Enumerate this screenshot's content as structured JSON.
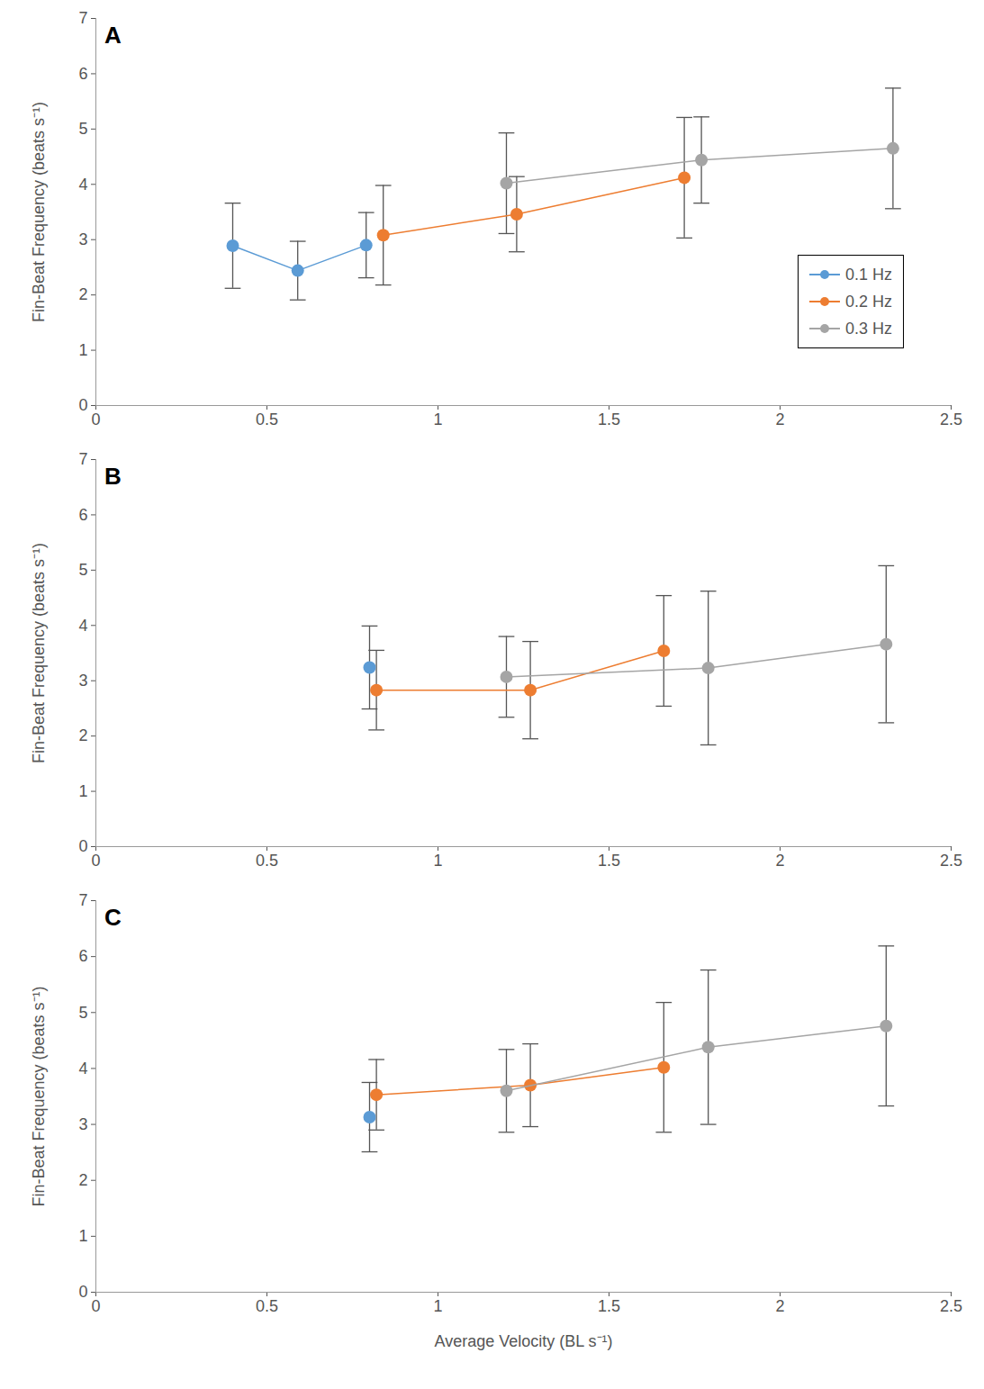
{
  "chart_data": [
    {
      "type": "line",
      "title": "A",
      "y_label": "Fin-Beat Frequency (beats s⁻¹)",
      "xlim": [
        0,
        2.5
      ],
      "xticks": [
        0,
        0.5,
        1,
        1.5,
        2,
        2.5
      ],
      "ylim": [
        0,
        7
      ],
      "yticks": [
        0,
        1,
        2,
        3,
        4,
        5,
        6,
        7
      ],
      "grid": false,
      "legend": "right",
      "marker": "circle",
      "series": [
        {
          "name": "0.1 Hz",
          "color": "#5B9BD5",
          "x": [
            0.4,
            0.59,
            0.79
          ],
          "values": [
            2.89,
            2.44,
            2.9
          ],
          "error": [
            0.77,
            0.53,
            0.59
          ]
        },
        {
          "name": "0.2 Hz",
          "color": "#ED7D31",
          "x": [
            0.84,
            1.23,
            1.72
          ],
          "values": [
            3.08,
            3.46,
            4.12
          ],
          "error": [
            0.9,
            0.68,
            1.09
          ]
        },
        {
          "name": "0.3 Hz",
          "color": "#A5A5A5",
          "x": [
            1.2,
            1.77,
            2.33
          ],
          "values": [
            4.02,
            4.44,
            4.65
          ],
          "error": [
            0.91,
            0.78,
            1.09
          ]
        }
      ]
    },
    {
      "type": "line",
      "title": "B",
      "y_label": "Fin-Beat Frequency (beats s⁻¹)",
      "xlim": [
        0,
        2.5
      ],
      "xticks": [
        0,
        0.5,
        1,
        1.5,
        2,
        2.5
      ],
      "ylim": [
        0,
        7
      ],
      "yticks": [
        0,
        1,
        2,
        3,
        4,
        5,
        6,
        7
      ],
      "grid": false,
      "marker": "circle",
      "series": [
        {
          "name": "0.1 Hz",
          "color": "#5B9BD5",
          "x": [
            0.8
          ],
          "values": [
            3.24
          ],
          "error": [
            0.75
          ]
        },
        {
          "name": "0.2 Hz",
          "color": "#ED7D31",
          "x": [
            0.82,
            1.27,
            1.66
          ],
          "values": [
            2.83,
            2.83,
            3.54
          ],
          "error": [
            0.72,
            0.88,
            1.0
          ]
        },
        {
          "name": "0.3 Hz",
          "color": "#A5A5A5",
          "x": [
            1.2,
            1.79,
            2.31
          ],
          "values": [
            3.07,
            3.23,
            3.66
          ],
          "error": [
            0.73,
            1.39,
            1.42
          ]
        }
      ]
    },
    {
      "type": "line",
      "title": "C",
      "y_label": "Fin-Beat Frequency (beats s⁻¹)",
      "x_label": "Average Velocity (BL s⁻¹)",
      "xlim": [
        0,
        2.5
      ],
      "xticks": [
        0,
        0.5,
        1,
        1.5,
        2,
        2.5
      ],
      "ylim": [
        0,
        7
      ],
      "yticks": [
        0,
        1,
        2,
        3,
        4,
        5,
        6,
        7
      ],
      "grid": false,
      "marker": "circle",
      "series": [
        {
          "name": "0.1 Hz",
          "color": "#5B9BD5",
          "x": [
            0.8
          ],
          "values": [
            3.13
          ],
          "error": [
            0.62
          ]
        },
        {
          "name": "0.2 Hz",
          "color": "#ED7D31",
          "x": [
            0.82,
            1.27,
            1.66
          ],
          "values": [
            3.53,
            3.7,
            4.02
          ],
          "error": [
            0.63,
            0.74,
            1.16
          ]
        },
        {
          "name": "0.3 Hz",
          "color": "#A5A5A5",
          "x": [
            1.2,
            1.79,
            2.31
          ],
          "values": [
            3.6,
            4.38,
            4.76
          ],
          "error": [
            0.74,
            1.38,
            1.43
          ]
        }
      ]
    }
  ]
}
